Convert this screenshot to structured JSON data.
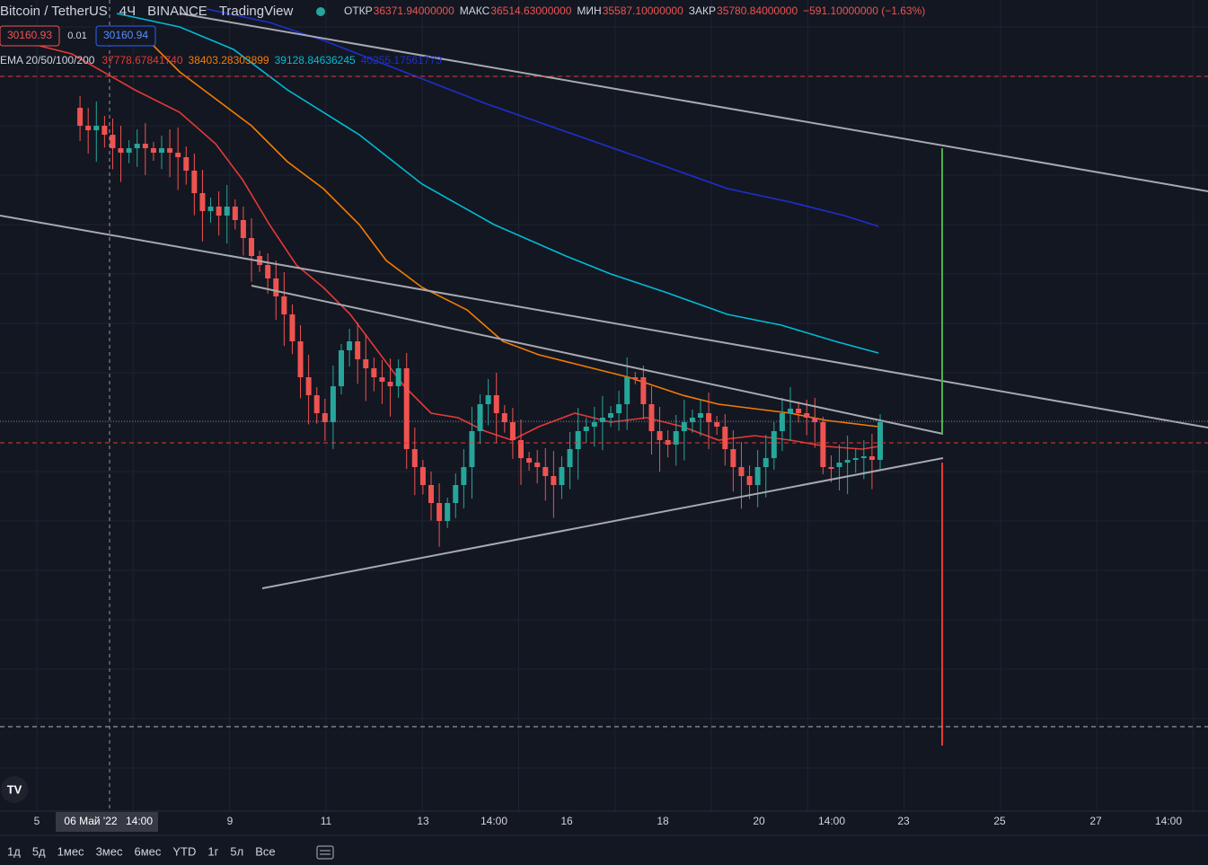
{
  "header": {
    "symbol": "Bitcoin / TetherUS",
    "interval": "4Ч",
    "exchange": "BINANCE",
    "source": "TradingView",
    "ohlc": [
      {
        "label": "ОТКР",
        "value": "36371.94000000"
      },
      {
        "label": "МАКС",
        "value": "36514.63000000"
      },
      {
        "label": "МИН",
        "value": "35587.10000000"
      },
      {
        "label": "ЗАКР",
        "value": "35780.84000000"
      }
    ],
    "change": "−591.10000000 (−1.63%)"
  },
  "badges": {
    "sell": "30160.93",
    "spread": "0.01",
    "buy": "30160.94"
  },
  "indicator": {
    "name": "EMA 20/50/100/200",
    "values": [
      {
        "text": "37778.67841740",
        "color": "#e53935"
      },
      {
        "text": "38403.28303899",
        "color": "#f57c00"
      },
      {
        "text": "39128.84636245",
        "color": "#00bcd4"
      },
      {
        "text": "40255.17561773",
        "color": "#1e2fcf"
      }
    ]
  },
  "x_axis": [
    "5",
    "06 Май '22",
    "14:00",
    "9",
    "11",
    "13",
    "14:00",
    "16",
    "18",
    "20",
    "14:00",
    "23",
    "25",
    "27",
    "14:00"
  ],
  "toolbar": [
    "1д",
    "5д",
    "1мес",
    "3мес",
    "6мес",
    "YTD",
    "1г",
    "5л",
    "Все"
  ]
}
